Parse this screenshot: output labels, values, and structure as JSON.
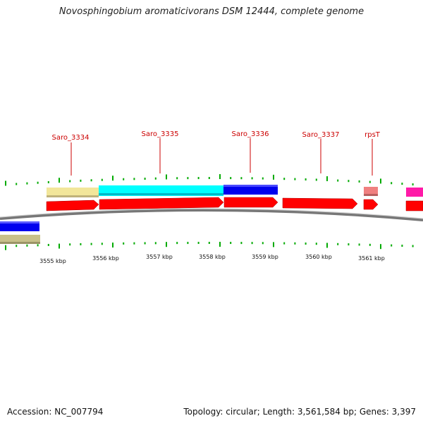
{
  "title": "Novosphingobium aromaticivorans DSM 12444, complete genome",
  "footer": {
    "accession_label": "Accession:",
    "accession": "NC_007794",
    "topology_label": "Topology:",
    "topology": "circular",
    "length_label": "Length:",
    "length": "3,561,584 bp",
    "genes_label": "Genes:",
    "genes": "3,397"
  },
  "colors": {
    "cds": "#ff0000",
    "label": "#cc0000",
    "tick": "#00aa00",
    "backbone": "#888888",
    "khaki": "#f2e69a",
    "khaki_dark": "#c8c08a",
    "cyan": "#00ffff",
    "blue": "#0000ee",
    "pink": "#f08080",
    "magenta": "#ff1aa8"
  },
  "gene_labels": [
    {
      "name": "Saro_3334"
    },
    {
      "name": "Saro_3335"
    },
    {
      "name": "Saro_3336"
    },
    {
      "name": "Saro_3337"
    },
    {
      "name": "rpsT"
    }
  ],
  "scale_labels": [
    "3555 kbp",
    "3556 kbp",
    "3557 kbp",
    "3558 kbp",
    "3559 kbp",
    "3560 kbp",
    "3561 kbp"
  ]
}
